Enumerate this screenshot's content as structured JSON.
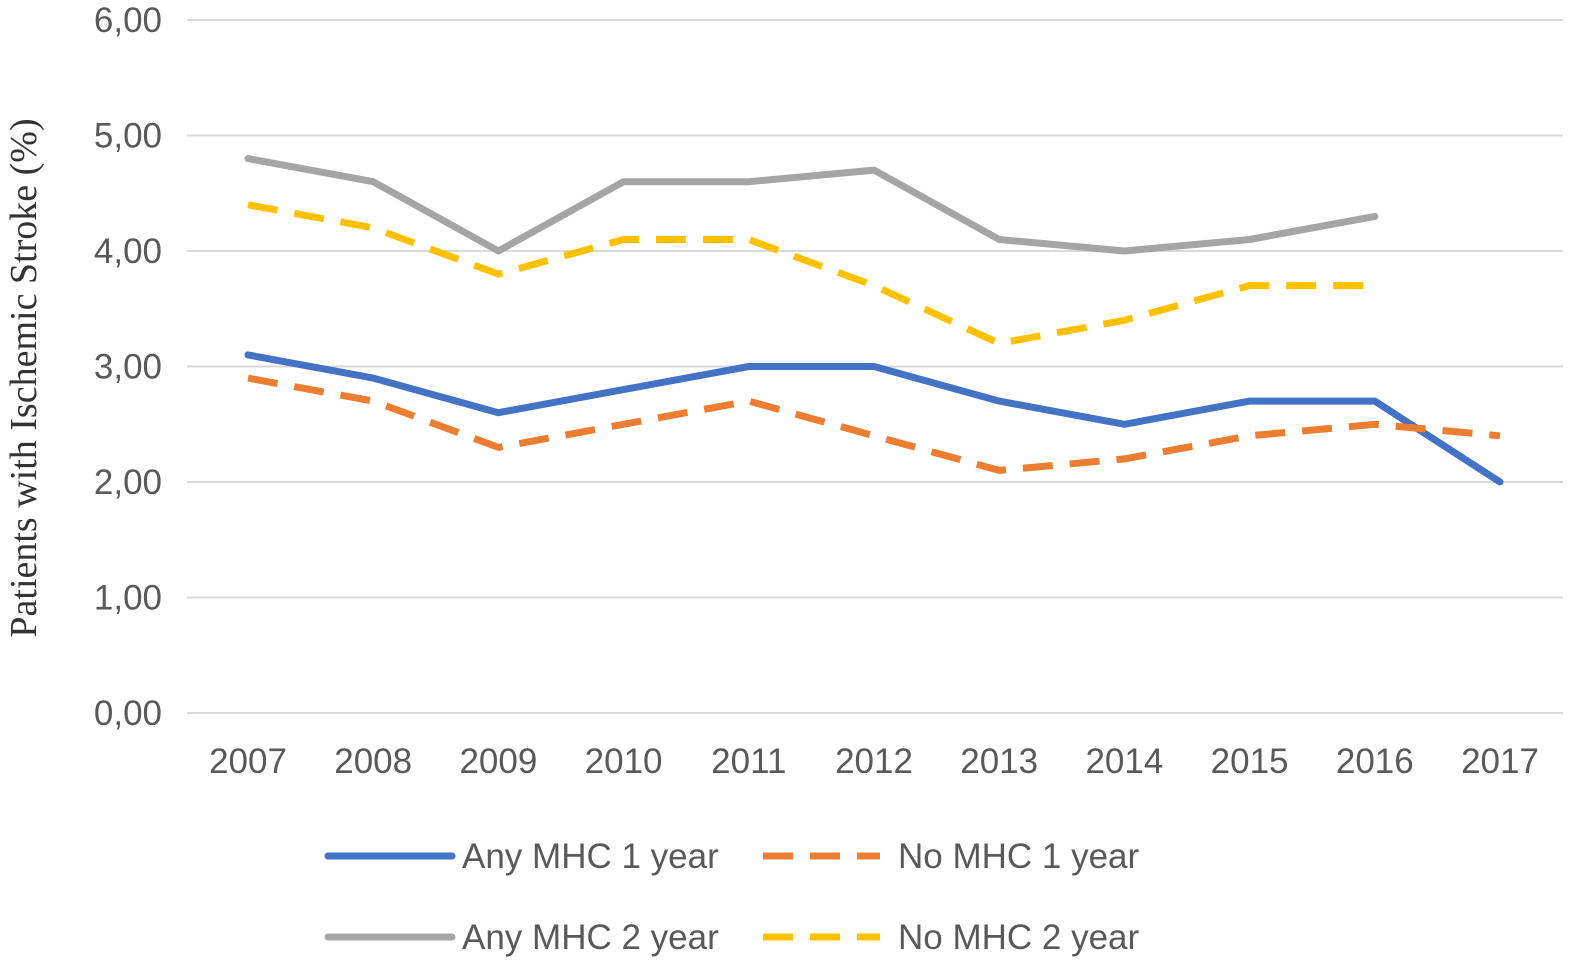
{
  "chart_data": {
    "type": "line",
    "title": "",
    "xlabel": "",
    "ylabel": "Patients with Ischemic Stroke (%)",
    "categories": [
      "2007",
      "2008",
      "2009",
      "2010",
      "2011",
      "2012",
      "2013",
      "2014",
      "2015",
      "2016",
      "2017"
    ],
    "ylim": [
      0,
      6
    ],
    "yticks": [
      "0,00",
      "1,00",
      "2,00",
      "3,00",
      "4,00",
      "5,00",
      "6,00"
    ],
    "grid": true,
    "legend_position": "bottom",
    "series": [
      {
        "name": "Any MHC 1 year",
        "color": "#4472C4",
        "dashed": false,
        "values": [
          3.1,
          2.9,
          2.6,
          2.8,
          3.0,
          3.0,
          2.7,
          2.5,
          2.7,
          2.7,
          2.0
        ]
      },
      {
        "name": "No MHC 1 year",
        "color": "#ED7D31",
        "dashed": true,
        "values": [
          2.9,
          2.7,
          2.3,
          2.5,
          2.7,
          2.4,
          2.1,
          2.2,
          2.4,
          2.5,
          2.4
        ]
      },
      {
        "name": "Any MHC 2 year",
        "color": "#A5A5A5",
        "dashed": false,
        "values": [
          4.8,
          4.6,
          4.0,
          4.6,
          4.6,
          4.7,
          4.1,
          4.0,
          4.1,
          4.3,
          null
        ]
      },
      {
        "name": "No MHC 2 year",
        "color": "#FFC000",
        "dashed": true,
        "values": [
          4.4,
          4.2,
          3.8,
          4.1,
          4.1,
          3.7,
          3.2,
          3.4,
          3.7,
          3.7,
          null
        ]
      }
    ]
  }
}
